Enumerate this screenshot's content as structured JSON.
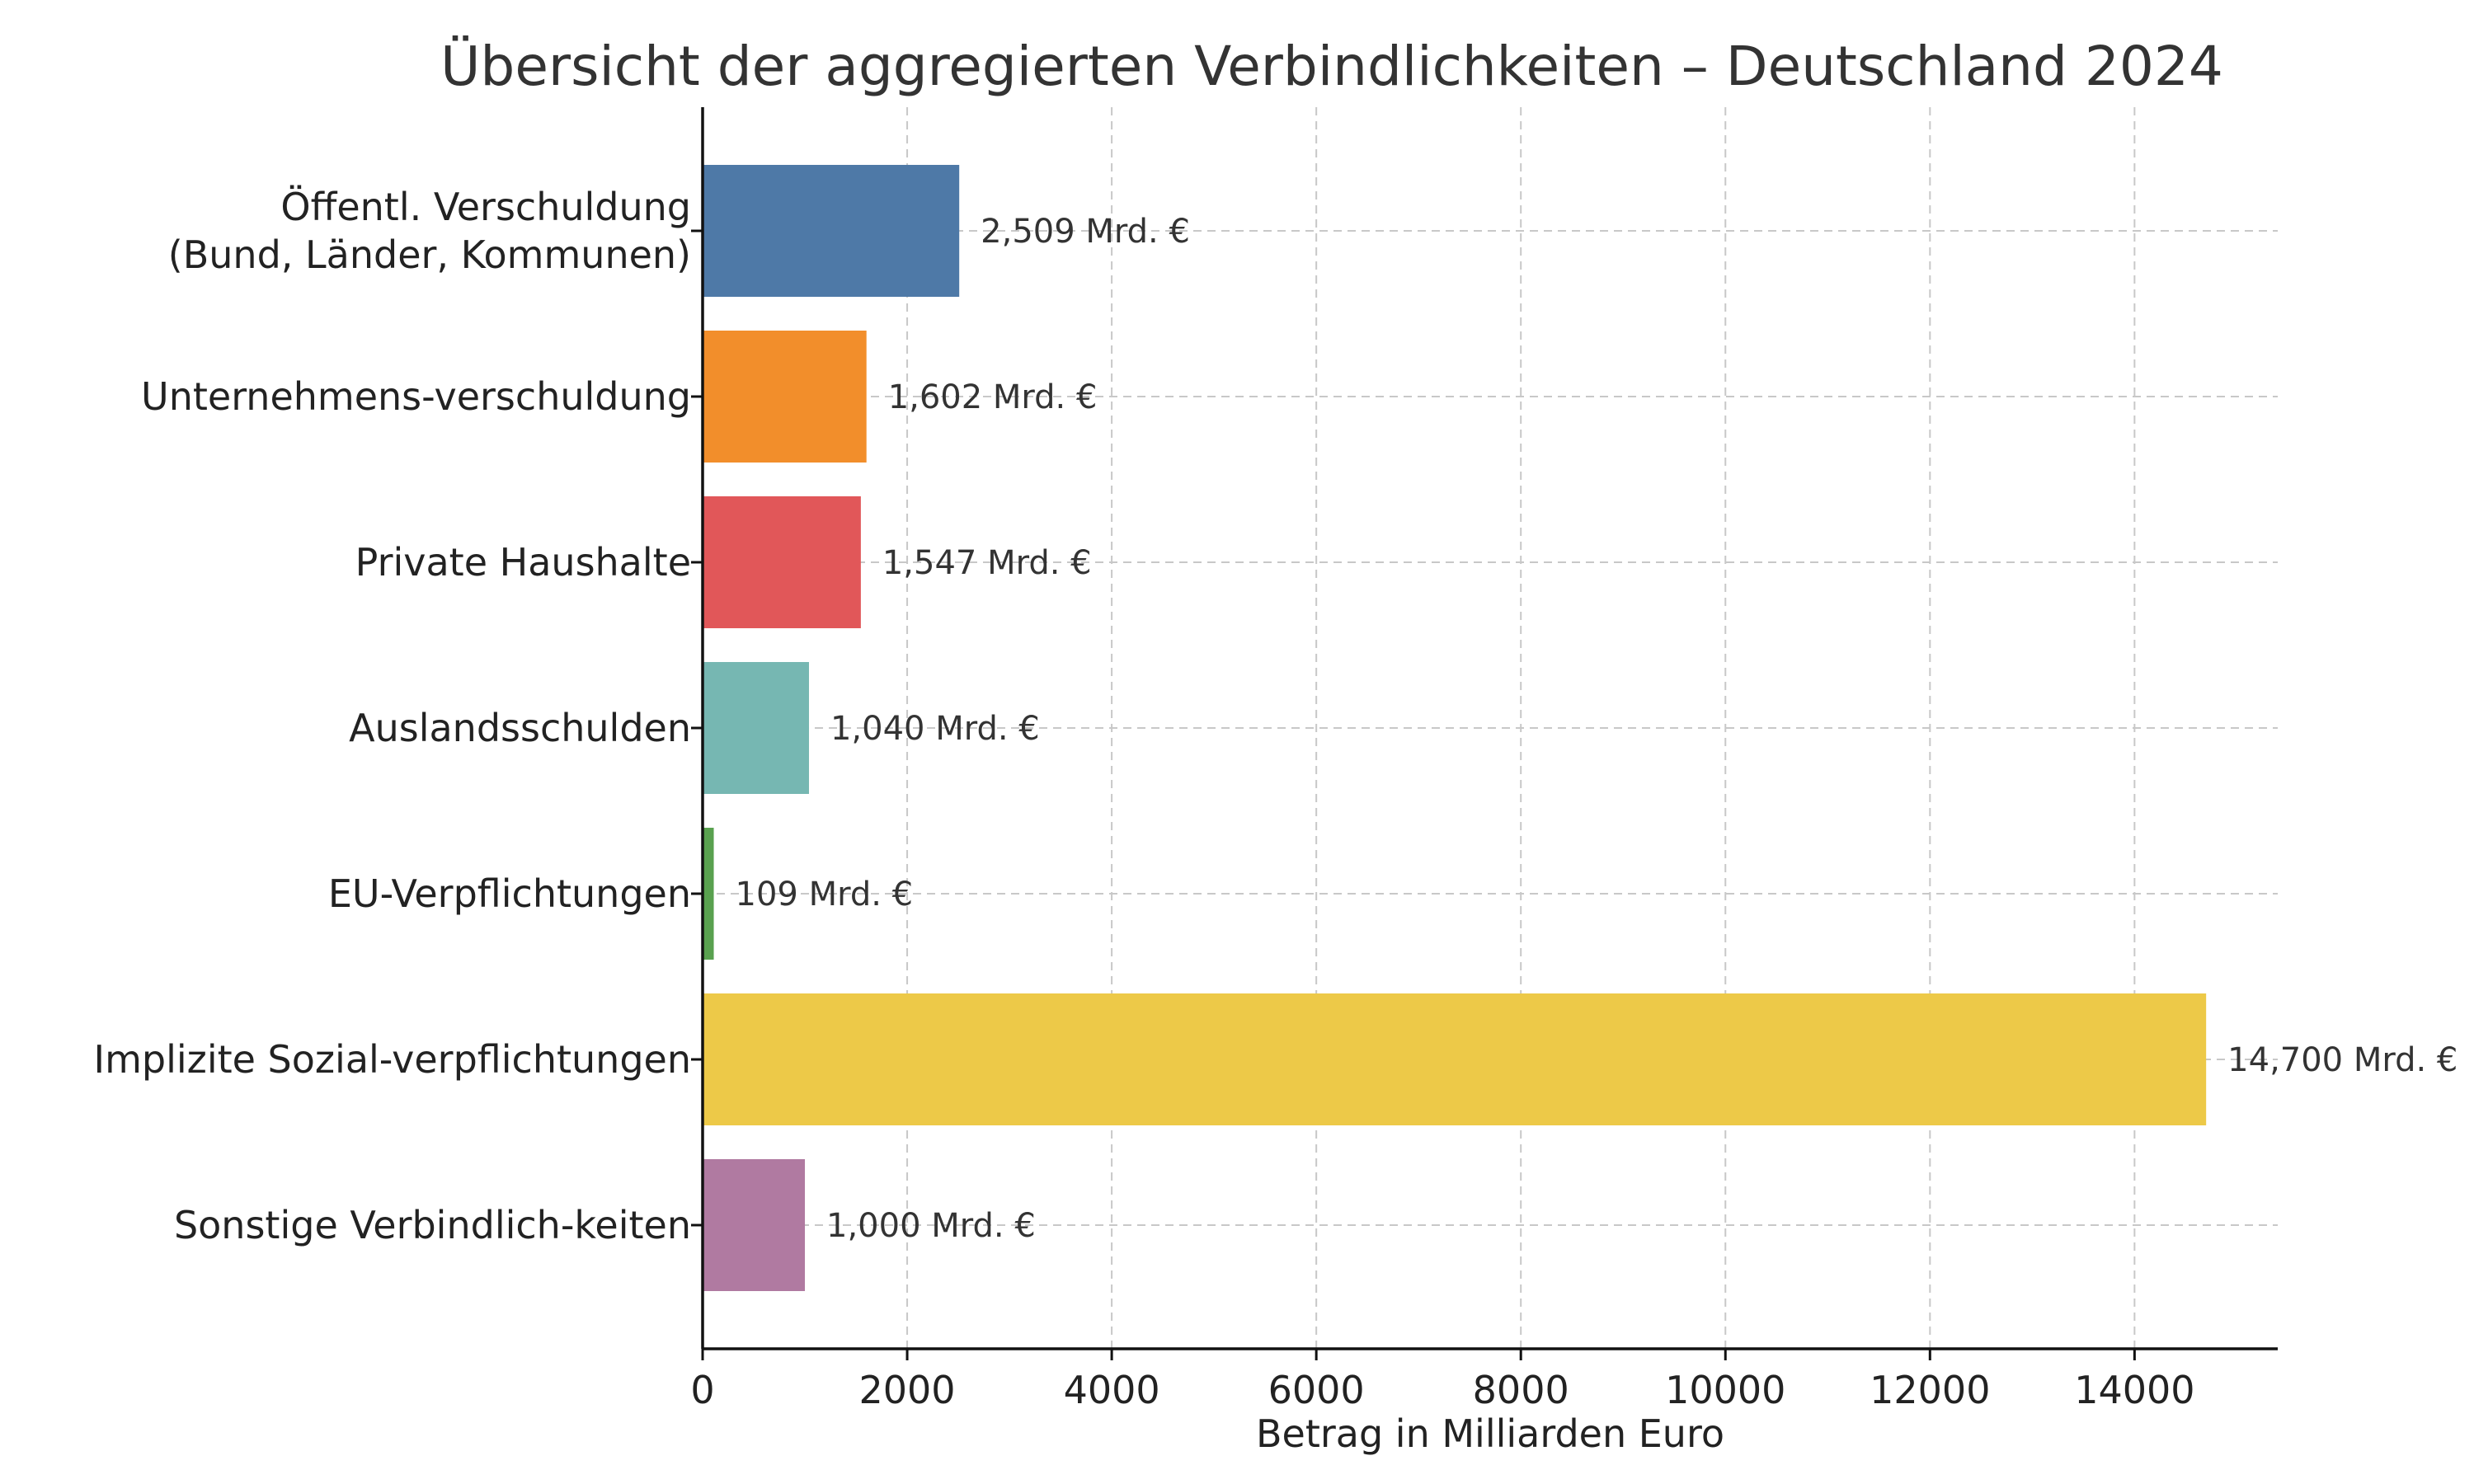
{
  "chart_data": {
    "type": "bar",
    "orientation": "horizontal",
    "title": "Übersicht der aggregierten Verbindlichkeiten – Deutschland 2024",
    "xlabel": "Betrag in Milliarden Euro",
    "ylabel": "",
    "xlim": [
      0,
      15400
    ],
    "xticks": [
      0,
      2000,
      4000,
      6000,
      8000,
      10000,
      12000,
      14000
    ],
    "grid": true,
    "categories": [
      [
        "Öffentl. Verschuldung",
        "(Bund, Länder, Kommunen)"
      ],
      [
        "Unternehmens-verschuldung"
      ],
      [
        "Private Haushalte"
      ],
      [
        "Auslandsschulden"
      ],
      [
        "EU-Verpflichtungen"
      ],
      [
        "Implizite Sozial-verpflichtungen"
      ],
      [
        "Sonstige Verbindlich-keiten"
      ]
    ],
    "values": [
      2509,
      1602,
      1547,
      1040,
      109,
      14700,
      1000
    ],
    "data_labels": [
      "2,509 Mrd. €",
      "1,602 Mrd. €",
      "1,547 Mrd. €",
      "1,040 Mrd. €",
      "109 Mrd. €",
      "14,700 Mrd. €",
      "1,000 Mrd. €"
    ],
    "colors": [
      "#4e79a7",
      "#f28e2b",
      "#e15759",
      "#76b7b2",
      "#59a14f",
      "#edc948",
      "#b07aa1"
    ]
  }
}
